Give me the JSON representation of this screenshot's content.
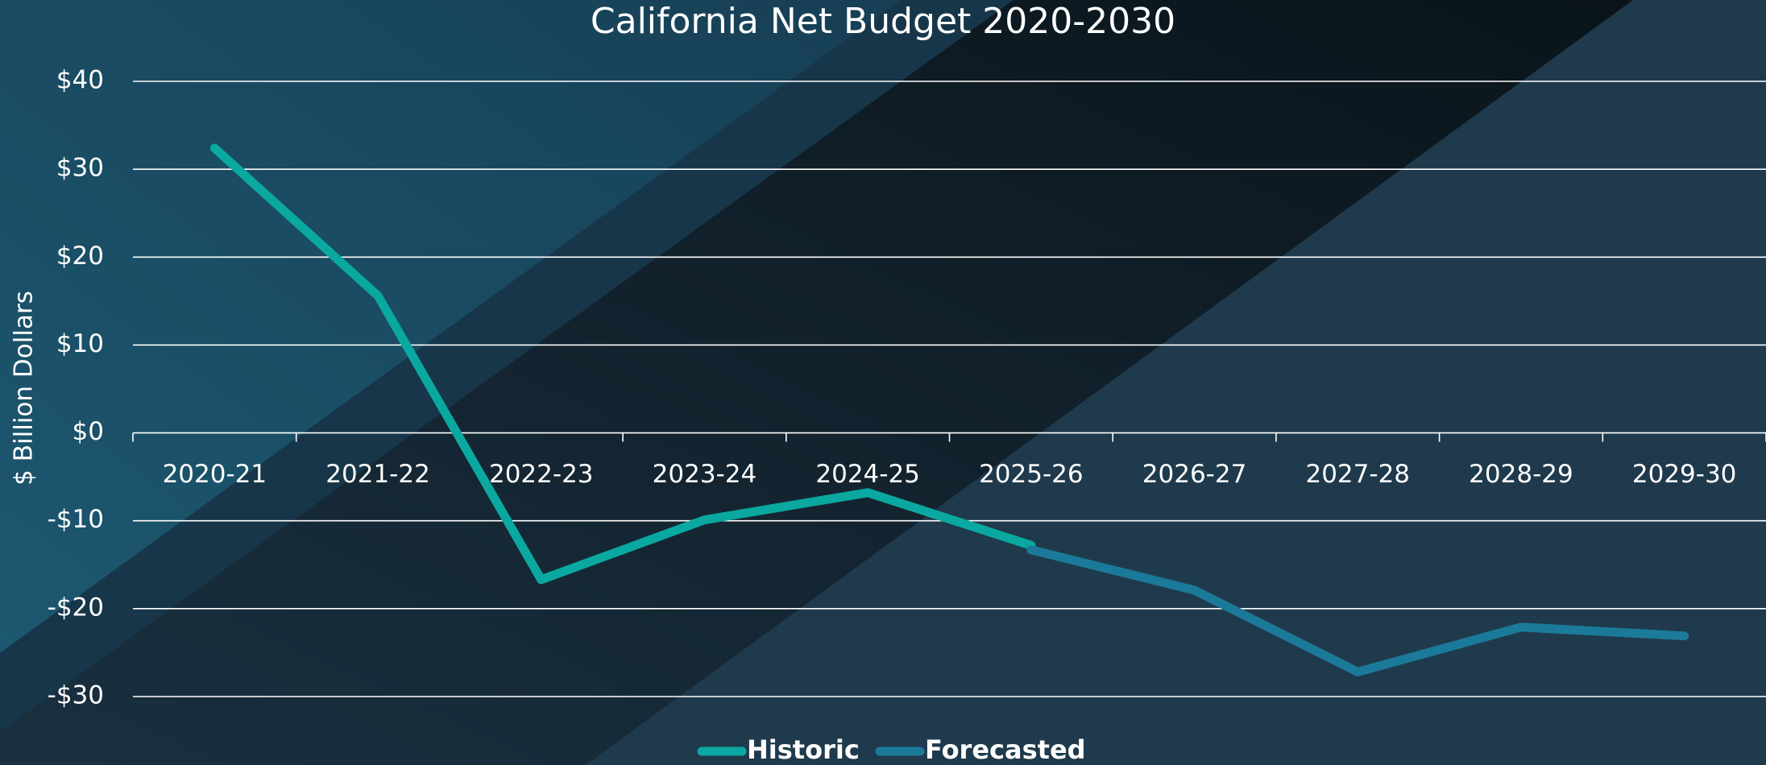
{
  "chart_data": {
    "type": "line",
    "title": "California Net Budget 2020-2030",
    "y_label": "$ Billion Dollars",
    "categories": [
      "2020-21",
      "2021-22",
      "2022-23",
      "2023-24",
      "2024-25",
      "2025-26",
      "2026-27",
      "2027-28",
      "2028-29",
      "2029-30"
    ],
    "series": [
      {
        "name": "Historic",
        "color": "#0aa8a0",
        "values": [
          32.4,
          15.6,
          -16.7,
          -9.9,
          -6.8,
          -12.8,
          null,
          null,
          null,
          null
        ]
      },
      {
        "name": "Forecasted",
        "color": "#1b7a99",
        "values": [
          null,
          null,
          null,
          null,
          null,
          -13.3,
          -17.9,
          -27.2,
          -22.1,
          -23.1
        ]
      }
    ],
    "ylim": [
      -30,
      40
    ],
    "yticks": [
      {
        "value": -30,
        "label": "-$30"
      },
      {
        "value": -20,
        "label": "-$20"
      },
      {
        "value": -10,
        "label": "-$10"
      },
      {
        "value": 0,
        "label": "$0"
      },
      {
        "value": 10,
        "label": "$10"
      },
      {
        "value": 20,
        "label": "$20"
      },
      {
        "value": 30,
        "label": "$30"
      },
      {
        "value": 40,
        "label": "$40"
      }
    ],
    "grid": true,
    "legend": "bottom"
  }
}
